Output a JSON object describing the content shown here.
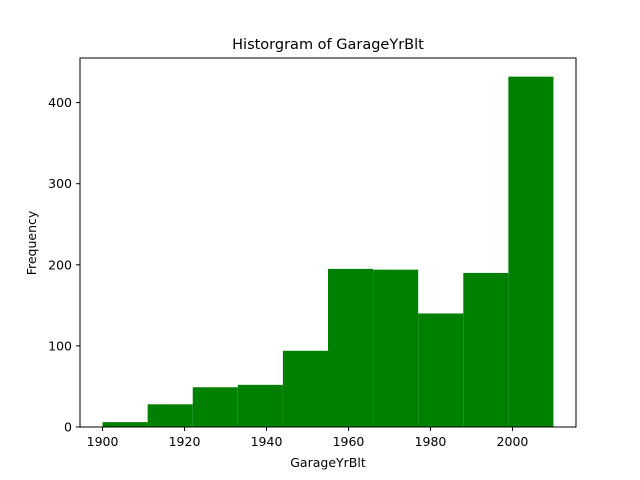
{
  "chart_data": {
    "type": "bar",
    "title": "Historgram of GarageYrBlt",
    "xlabel": "GarageYrBlt",
    "ylabel": "Frequency",
    "bar_color": "#008000",
    "xlim": [
      1894.5,
      2015.5
    ],
    "ylim": [
      0,
      455
    ],
    "x_ticks": [
      1900,
      1920,
      1940,
      1960,
      1980,
      2000
    ],
    "y_ticks": [
      0,
      100,
      200,
      300,
      400
    ],
    "bins": [
      {
        "start": 1900,
        "end": 1911,
        "value": 6
      },
      {
        "start": 1911,
        "end": 1922,
        "value": 28
      },
      {
        "start": 1922,
        "end": 1933,
        "value": 49
      },
      {
        "start": 1933,
        "end": 1944,
        "value": 52
      },
      {
        "start": 1944,
        "end": 1955,
        "value": 94
      },
      {
        "start": 1955,
        "end": 1966,
        "value": 195
      },
      {
        "start": 1966,
        "end": 1977,
        "value": 194
      },
      {
        "start": 1977,
        "end": 1988,
        "value": 140
      },
      {
        "start": 1988,
        "end": 1999,
        "value": 190
      },
      {
        "start": 1999,
        "end": 2010,
        "value": 432
      }
    ],
    "grid": false,
    "legend": "none"
  }
}
